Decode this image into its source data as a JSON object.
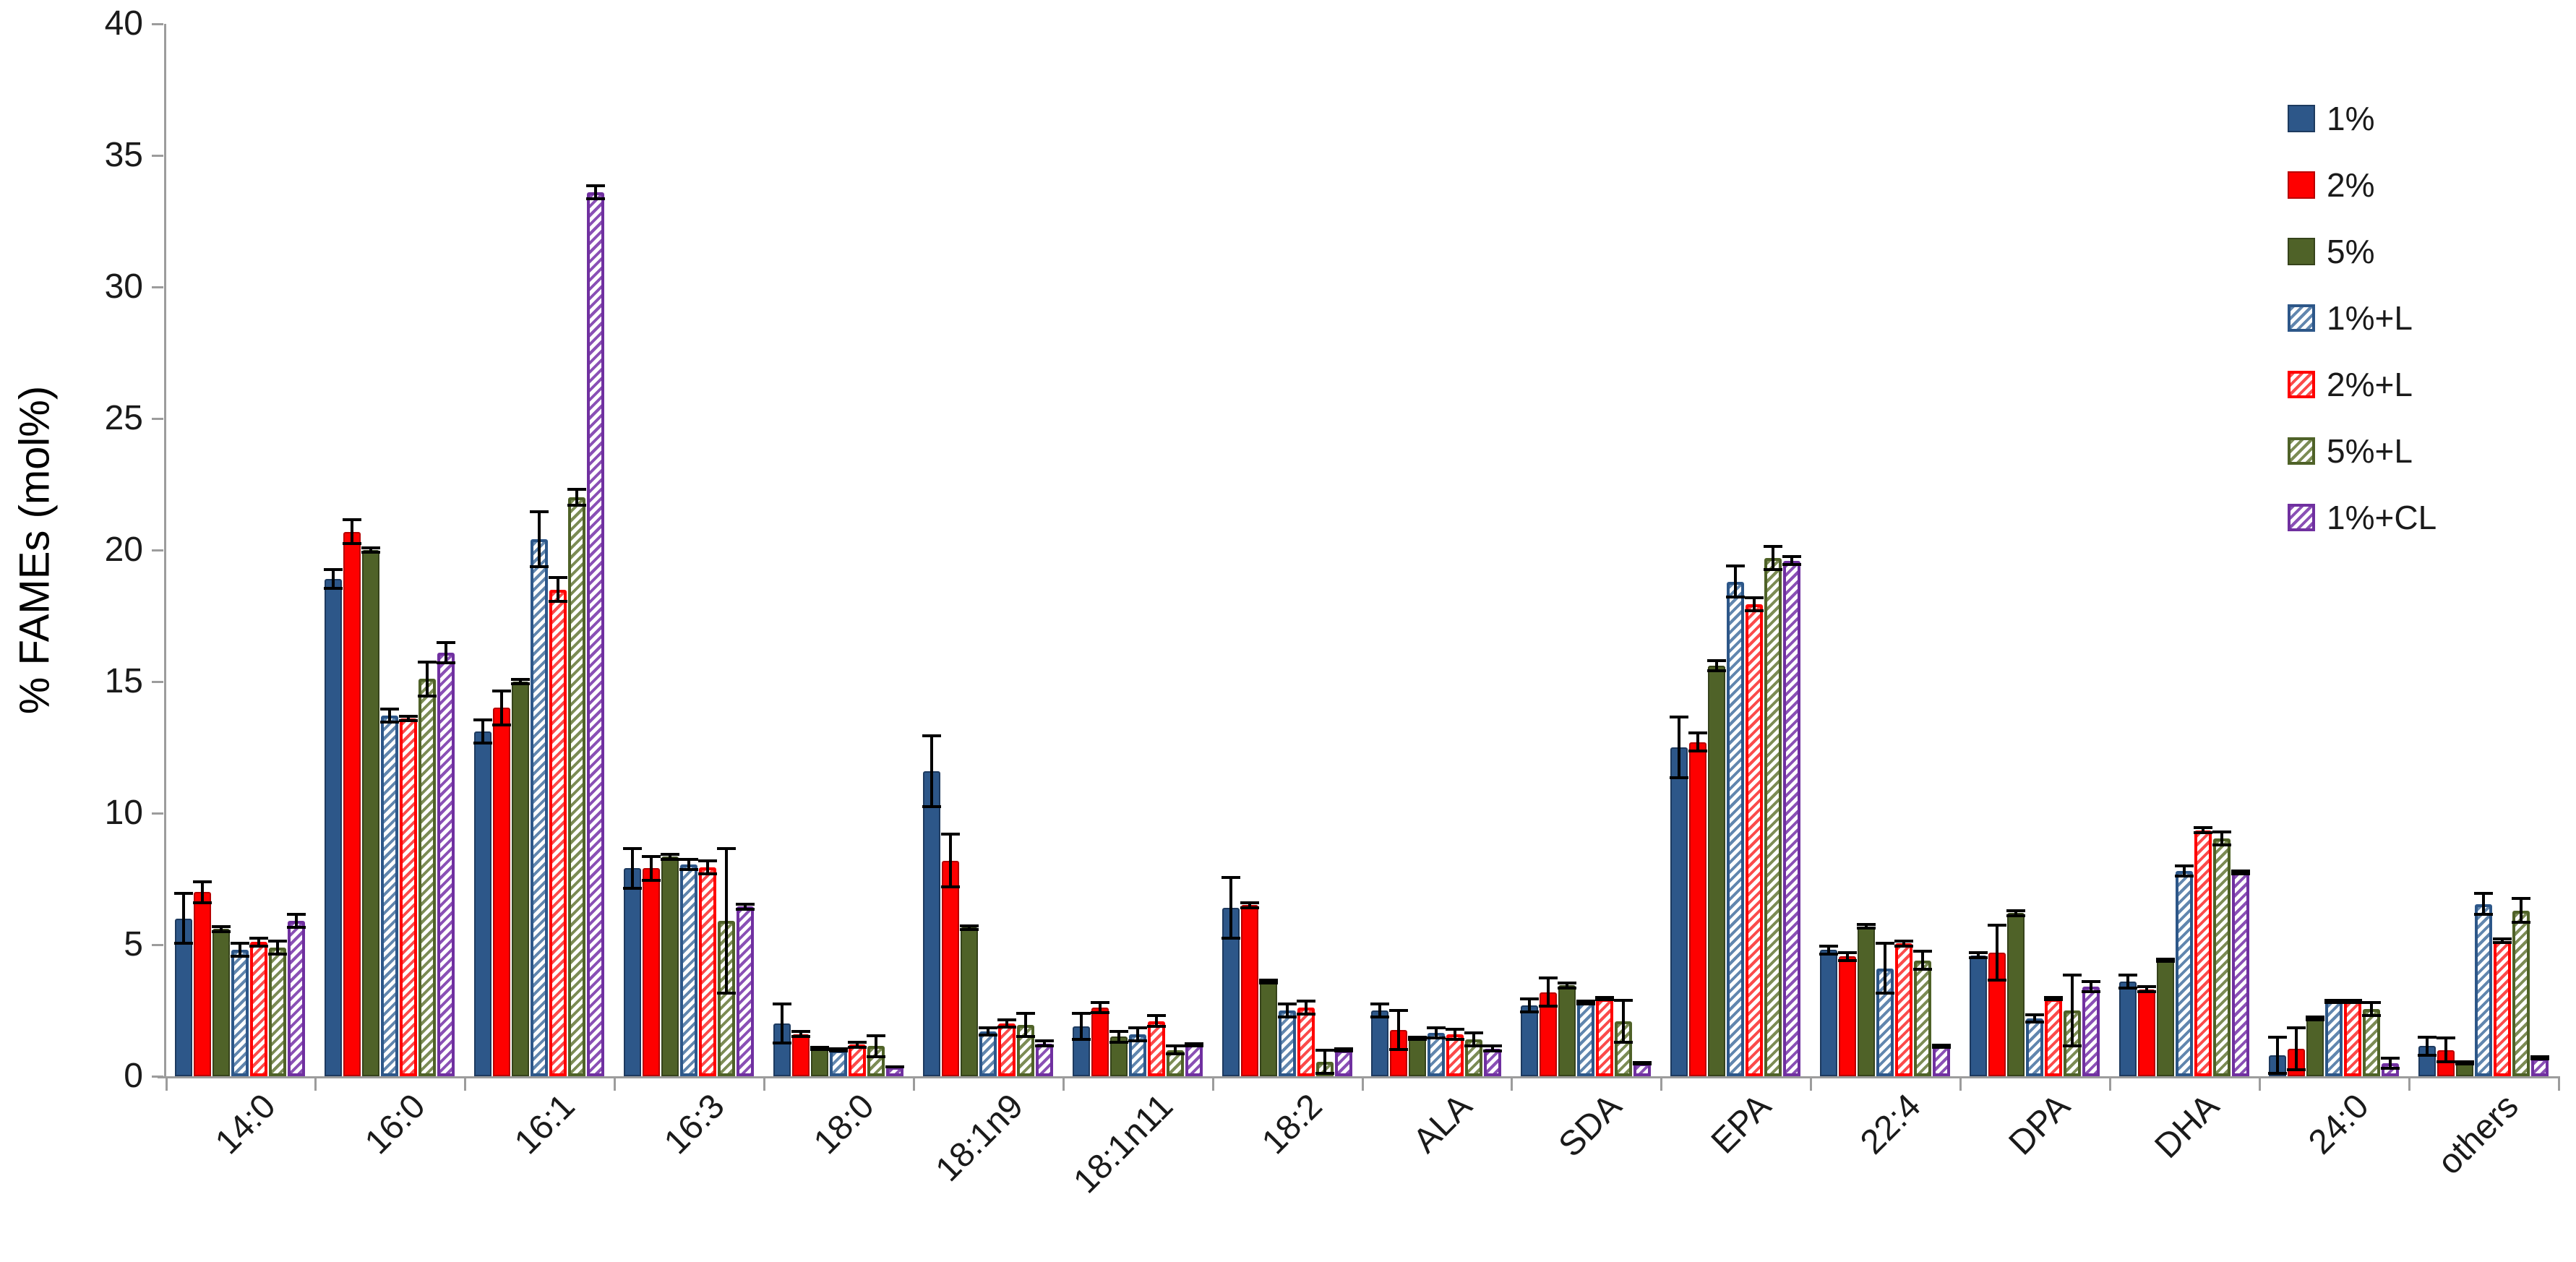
{
  "chart_data": {
    "type": "bar",
    "title": "",
    "xlabel": "",
    "ylabel": "% FAMEs (mol%)",
    "ylim": [
      0,
      40
    ],
    "ytick_step": 5,
    "grid": false,
    "legend_position": "upper right",
    "axis_color": "#9c9c9c",
    "text_color": "#1a1a1a",
    "categories": [
      "14:0",
      "16:0",
      "16:1",
      "16:3",
      "18:0",
      "18:1n9",
      "18:1n11",
      "18:2",
      "ALA",
      "SDA",
      "EPA",
      "22:4",
      "DPA",
      "DHA",
      "24:0",
      "others"
    ],
    "series": [
      {
        "name": "1%",
        "style": "solid",
        "color": "#2D5789",
        "border": "#1D3A5F",
        "values": [
          6.0,
          18.9,
          13.1,
          7.9,
          2.0,
          11.6,
          1.9,
          6.4,
          2.5,
          2.7,
          12.5,
          4.8,
          4.6,
          3.6,
          0.8,
          1.15
        ],
        "errors": [
          1.0,
          0.4,
          0.5,
          0.8,
          0.8,
          1.4,
          0.55,
          1.2,
          0.3,
          0.3,
          1.2,
          0.2,
          0.15,
          0.3,
          0.75,
          0.4
        ]
      },
      {
        "name": "2%",
        "style": "solid",
        "color": "#FE0000",
        "border": "#B80000",
        "values": [
          7.0,
          20.7,
          14.0,
          7.9,
          1.6,
          8.2,
          2.6,
          6.5,
          1.75,
          3.2,
          12.7,
          4.55,
          4.7,
          3.3,
          1.05,
          1.0
        ],
        "errors": [
          0.45,
          0.5,
          0.7,
          0.5,
          0.15,
          1.05,
          0.25,
          0.15,
          0.8,
          0.6,
          0.4,
          0.2,
          1.1,
          0.15,
          0.85,
          0.5
        ]
      },
      {
        "name": "5%",
        "style": "solid",
        "color": "#4F6228",
        "border": "#36431B",
        "values": [
          5.6,
          20.0,
          15.0,
          8.35,
          1.05,
          5.65,
          1.5,
          3.6,
          1.45,
          3.45,
          15.6,
          5.7,
          6.2,
          4.4,
          2.2,
          0.5
        ],
        "errors": [
          0.15,
          0.15,
          0.15,
          0.15,
          0.1,
          0.12,
          0.25,
          0.1,
          0.1,
          0.15,
          0.25,
          0.12,
          0.15,
          0.1,
          0.1,
          0.1
        ]
      },
      {
        "name": "1%+L",
        "style": "hatched",
        "color": "#6186AE",
        "border": "#2D5789",
        "values": [
          4.8,
          13.7,
          20.4,
          8.05,
          1.0,
          1.7,
          1.6,
          2.5,
          1.65,
          2.8,
          18.8,
          4.1,
          2.2,
          7.8,
          2.85,
          6.55
        ],
        "errors": [
          0.3,
          0.3,
          1.1,
          0.25,
          0.1,
          0.2,
          0.3,
          0.3,
          0.25,
          0.1,
          0.65,
          1.0,
          0.2,
          0.25,
          0.1,
          0.45
        ]
      },
      {
        "name": "2%+L",
        "style": "hatched",
        "color": "#FB4B4B",
        "border": "#FF0000",
        "values": [
          5.1,
          13.6,
          18.5,
          7.95,
          1.2,
          2.0,
          2.1,
          2.6,
          1.6,
          2.95,
          17.95,
          5.05,
          2.95,
          9.35,
          2.85,
          5.15
        ],
        "errors": [
          0.2,
          0.15,
          0.5,
          0.3,
          0.15,
          0.2,
          0.25,
          0.3,
          0.25,
          0.1,
          0.3,
          0.15,
          0.1,
          0.15,
          0.1,
          0.12
        ]
      },
      {
        "name": "5%+L",
        "style": "hatched",
        "color": "#7C8C55",
        "border": "#4F6228",
        "values": [
          4.9,
          15.1,
          22.0,
          5.9,
          1.15,
          1.95,
          1.0,
          0.55,
          1.4,
          2.1,
          19.7,
          4.4,
          2.5,
          9.05,
          2.55,
          6.3
        ],
        "errors": [
          0.3,
          0.7,
          0.35,
          2.8,
          0.45,
          0.5,
          0.2,
          0.5,
          0.3,
          0.85,
          0.5,
          0.4,
          1.4,
          0.3,
          0.3,
          0.5
        ]
      },
      {
        "name": "1%+CL",
        "style": "hatched",
        "color": "#8A50B5",
        "border": "#7030A0",
        "values": [
          5.9,
          16.1,
          33.6,
          6.45,
          0.35,
          1.25,
          1.2,
          1.0,
          1.05,
          0.5,
          19.6,
          1.15,
          3.4,
          7.75,
          0.5,
          0.7
        ],
        "errors": [
          0.3,
          0.45,
          0.3,
          0.15,
          0.05,
          0.15,
          0.1,
          0.1,
          0.15,
          0.08,
          0.2,
          0.1,
          0.25,
          0.1,
          0.25,
          0.1
        ]
      }
    ]
  }
}
